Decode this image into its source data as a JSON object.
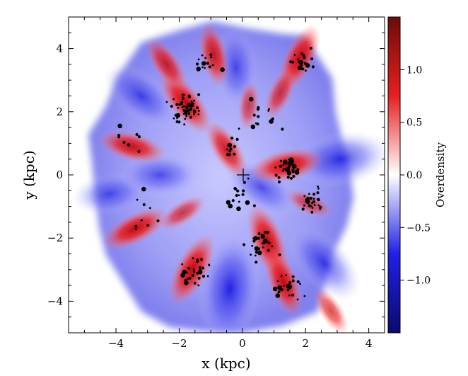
{
  "chart_data": {
    "type": "heatmap",
    "title": "",
    "xlabel": "x (kpc)",
    "ylabel": "y (kpc)",
    "xlim": [
      -5.5,
      4.5
    ],
    "ylim": [
      -5.0,
      5.0
    ],
    "xticks": [
      -4,
      -2,
      0,
      2,
      4
    ],
    "yticks": [
      -4,
      -2,
      0,
      2,
      4
    ],
    "xtick_labels": [
      "−4",
      "−2",
      "0",
      "2",
      "4"
    ],
    "ytick_labels": [
      "−4",
      "−2",
      "0",
      "2",
      "4"
    ],
    "colorbar": {
      "label": "Overdensity",
      "range": [
        -1.5,
        1.5
      ],
      "ticks": [
        -1.0,
        -0.5,
        0.0,
        0.5,
        1.0
      ],
      "tick_labels": [
        "−1.0",
        "−0.5",
        "0.0",
        "0.5",
        "1.0"
      ],
      "colormap": [
        "#0a0a6e",
        "#2020e6",
        "#ffffff",
        "#e62020",
        "#6e0a0a"
      ]
    },
    "overdense_regions": [
      {
        "x": -1.8,
        "y": 2.3,
        "value": 1.3
      },
      {
        "x": -2.4,
        "y": 3.5,
        "value": 0.9
      },
      {
        "x": -0.9,
        "y": 3.8,
        "value": 1.0
      },
      {
        "x": -3.5,
        "y": 0.9,
        "value": 1.1
      },
      {
        "x": -3.4,
        "y": -1.7,
        "value": 1.2
      },
      {
        "x": -1.6,
        "y": -3.0,
        "value": 1.4
      },
      {
        "x": -1.9,
        "y": -1.2,
        "value": 0.6
      },
      {
        "x": 1.4,
        "y": 0.3,
        "value": 1.3
      },
      {
        "x": 2.1,
        "y": -0.9,
        "value": 0.5
      },
      {
        "x": 0.8,
        "y": -2.1,
        "value": 1.4
      },
      {
        "x": 1.3,
        "y": -3.4,
        "value": 1.2
      },
      {
        "x": 1.8,
        "y": 3.7,
        "value": 1.2
      },
      {
        "x": 1.2,
        "y": 2.6,
        "value": 0.7
      },
      {
        "x": -0.5,
        "y": 0.8,
        "value": 1.0
      },
      {
        "x": 0.2,
        "y": 2.2,
        "value": 0.5
      },
      {
        "x": 2.8,
        "y": -4.3,
        "value": 0.6
      }
    ],
    "underdense_regions": [
      {
        "x": -0.4,
        "y": -3.6,
        "value": -1.2
      },
      {
        "x": -3.2,
        "y": 2.5,
        "value": -0.6
      },
      {
        "x": 3.1,
        "y": 0.5,
        "value": -0.9
      },
      {
        "x": -0.2,
        "y": 3.4,
        "value": -0.5
      },
      {
        "x": -4.2,
        "y": -0.6,
        "value": -0.4
      },
      {
        "x": 2.6,
        "y": -2.8,
        "value": -0.7
      },
      {
        "x": -2.6,
        "y": 0.0,
        "value": -0.5
      },
      {
        "x": 0.6,
        "y": -0.4,
        "value": -0.5
      }
    ],
    "markers": {
      "center_cross": {
        "x": 0,
        "y": 0
      },
      "clusters": [
        {
          "x": -1.8,
          "y": 2.1,
          "n": 60,
          "spread": 0.45
        },
        {
          "x": 1.9,
          "y": 3.6,
          "n": 18,
          "spread": 0.35
        },
        {
          "x": -1.0,
          "y": 3.5,
          "n": 14,
          "spread": 0.35
        },
        {
          "x": 1.5,
          "y": 0.2,
          "n": 35,
          "spread": 0.4
        },
        {
          "x": 2.2,
          "y": -0.8,
          "n": 28,
          "spread": 0.35
        },
        {
          "x": 0.6,
          "y": -2.2,
          "n": 30,
          "spread": 0.45
        },
        {
          "x": 1.4,
          "y": -3.6,
          "n": 24,
          "spread": 0.5
        },
        {
          "x": -1.5,
          "y": -3.1,
          "n": 30,
          "spread": 0.5
        },
        {
          "x": -0.4,
          "y": 0.8,
          "n": 10,
          "spread": 0.3
        },
        {
          "x": 0.5,
          "y": 1.8,
          "n": 16,
          "spread": 0.6
        },
        {
          "x": -3.2,
          "y": -1.4,
          "n": 10,
          "spread": 0.7
        },
        {
          "x": -3.7,
          "y": 1.1,
          "n": 8,
          "spread": 0.6
        },
        {
          "x": 0.0,
          "y": -0.6,
          "n": 16,
          "spread": 0.6
        }
      ]
    }
  }
}
